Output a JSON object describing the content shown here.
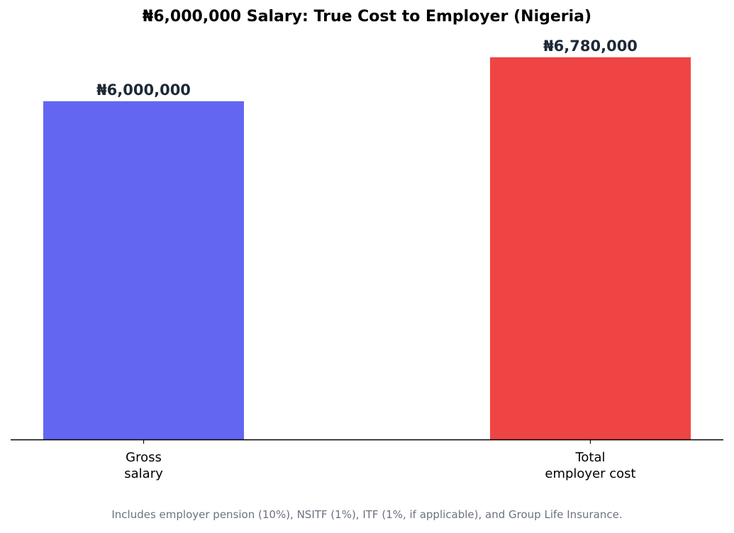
{
  "chart_data": {
    "type": "bar",
    "title": "₦6,000,000 Salary: True Cost to Employer (Nigeria)",
    "categories": [
      "Gross\nsalary",
      "Total\nemployer cost"
    ],
    "values": [
      6000000,
      6780000
    ],
    "data_labels": [
      "₦6,000,000",
      "₦6,780,000"
    ],
    "colors": [
      "#6366f1",
      "#ef4444"
    ],
    "ylim": [
      0,
      7500000
    ],
    "grid": false,
    "legend": "none",
    "footnote": "Includes employer pension (10%), NSITF (1%), ITF (1%, if applicable), and Group Life Insurance."
  }
}
